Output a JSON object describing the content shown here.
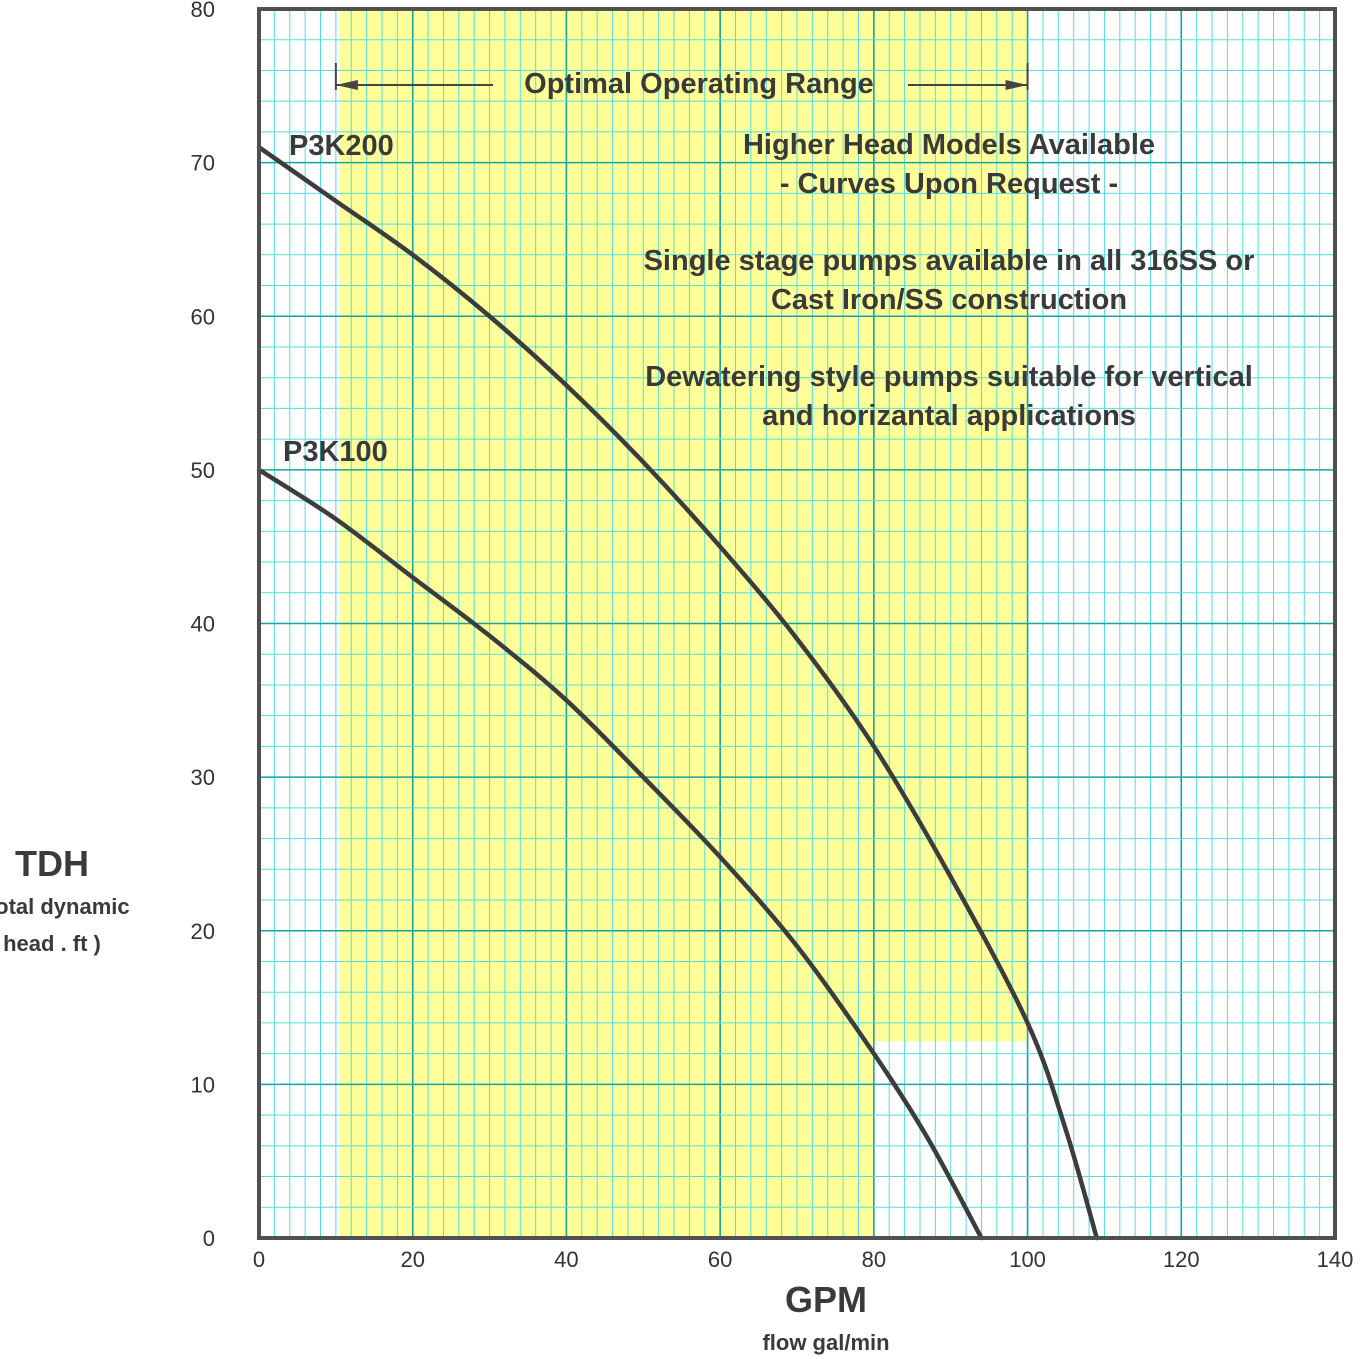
{
  "chart_data": {
    "type": "line",
    "xlabel": "GPM",
    "xlabel_sub": "flow gal/min",
    "ylabel": "TDH",
    "ylabel_sub_1": "( total dynamic",
    "ylabel_sub_2": "head . ft )",
    "xlim": [
      0,
      140
    ],
    "ylim": [
      0,
      80
    ],
    "x_ticks": [
      0,
      20,
      40,
      60,
      80,
      100,
      120,
      140
    ],
    "y_ticks": [
      0,
      10,
      20,
      30,
      40,
      50,
      60,
      70,
      80
    ],
    "grid": true,
    "optimal_range": {
      "label": "Optimal Operating Range",
      "x_start": 10,
      "x_end": 100
    },
    "shaded_regions": [
      {
        "x": [
          10.5,
          80
        ],
        "y": [
          0,
          80
        ]
      },
      {
        "x": [
          80,
          100
        ],
        "y": [
          12.8,
          80
        ]
      }
    ],
    "series": [
      {
        "name": "P3K200",
        "x": [
          0,
          10,
          20,
          30,
          40,
          50,
          60,
          70,
          80,
          90,
          100,
          105,
          109
        ],
        "y": [
          71,
          67.5,
          64,
          60,
          55.5,
          50.5,
          45,
          39,
          32,
          23.5,
          14,
          7,
          0
        ]
      },
      {
        "name": "P3K100",
        "x": [
          0,
          10,
          20,
          30,
          40,
          50,
          60,
          70,
          80,
          87,
          94
        ],
        "y": [
          50,
          46.8,
          43,
          39.2,
          35,
          30,
          24.8,
          19,
          12,
          6.5,
          0
        ]
      }
    ],
    "annotations": [
      "Higher Head Models Available",
      "- Curves Upon Request -",
      "Single stage pumps available in all 316SS or",
      "Cast Iron/SS construction",
      "Dewatering style pumps suitable for vertical",
      "and horizantal applications"
    ]
  }
}
